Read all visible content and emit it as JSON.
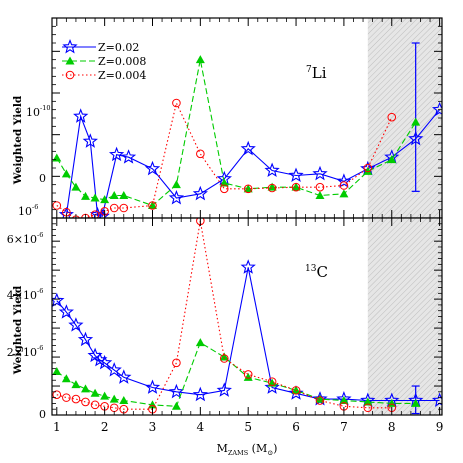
{
  "chart_data": [
    {
      "type": "line",
      "panel": "top",
      "annotation": "7Li",
      "annotation_sup": "7",
      "annotation_base": "Li",
      "ylabel": "Weighted Yield",
      "ylim": [
        -5,
        19
      ],
      "x_range": [
        0.9,
        9.05
      ],
      "y_ticks": [
        {
          "value": 0,
          "label": "0"
        },
        {
          "value": 10,
          "label": "10"
        },
        {
          "value": -5,
          "label": "10"
        }
      ],
      "y_tick_exponents": [
        "-10",
        "-6"
      ],
      "shaded_region_x": [
        7.5,
        9.05
      ],
      "legend_position": "top-left",
      "error_bar": {
        "x": 8.5,
        "y": 4.5,
        "low": -1.8,
        "high": 16,
        "color": "#0000ff"
      },
      "series": [
        {
          "name": "Z=0.02",
          "color": "#0000ff",
          "marker": "star",
          "dash": "solid",
          "x": [
            1.2,
            1.5,
            1.7,
            1.85,
            1.95,
            2.25,
            2.5,
            3.0,
            3.5,
            4.0,
            4.5,
            5.0,
            5.5,
            6.0,
            6.5,
            7.0,
            7.5,
            8.0,
            8.5,
            9.0
          ],
          "y": [
            -4.6,
            7.2,
            4.2,
            -4.6,
            -4.8,
            2.6,
            2.3,
            0.9,
            -2.6,
            -2.1,
            -0.3,
            3.3,
            0.7,
            0.1,
            0.3,
            -0.6,
            0.9,
            2.3,
            4.5,
            8.0
          ]
        },
        {
          "name": "Z=0.008",
          "color": "#00cc00",
          "marker": "triangle",
          "dash": "dashed",
          "x": [
            1.0,
            1.2,
            1.4,
            1.6,
            1.8,
            2.0,
            2.2,
            2.4,
            3.0,
            3.5,
            4.0,
            4.5,
            5.0,
            5.5,
            6.0,
            6.5,
            7.0,
            7.5,
            8.0,
            8.5
          ],
          "y": [
            2.2,
            0.3,
            -1.3,
            -2.4,
            -2.6,
            -2.8,
            -2.3,
            -2.3,
            -3.5,
            -1.0,
            14.0,
            -0.8,
            -1.5,
            -1.3,
            -1.3,
            -2.3,
            -2.1,
            0.6,
            2.0,
            6.5
          ]
        },
        {
          "name": "Z=0.004",
          "color": "#ff0000",
          "marker": "circle",
          "dash": "dotted",
          "x": [
            1.0,
            1.2,
            1.4,
            1.6,
            1.8,
            2.0,
            2.2,
            2.4,
            3.0,
            3.5,
            4.0,
            4.5,
            5.0,
            5.5,
            6.0,
            6.5,
            7.0,
            7.5,
            8.0
          ],
          "y": [
            -3.5,
            -4.3,
            -5.2,
            -5.0,
            -4.6,
            -4.2,
            -3.8,
            -3.8,
            -3.5,
            8.8,
            2.7,
            -1.5,
            -1.5,
            -1.4,
            -1.3,
            -1.3,
            -1.1,
            1.0,
            7.1
          ]
        }
      ]
    },
    {
      "type": "line",
      "panel": "bottom",
      "annotation": "13C",
      "annotation_sup": "13",
      "annotation_base": "C",
      "ylabel": "Weighted Yield",
      "xlabel": "M",
      "xlabel_sub": "ZAMS",
      "xlabel_unit": "(M",
      "xlabel_unit_end": ")",
      "ylim": [
        0,
        6.8
      ],
      "x_range": [
        0.9,
        9.05
      ],
      "x_ticks": [
        "1",
        "2",
        "3",
        "4",
        "5",
        "6",
        "7",
        "8",
        "9"
      ],
      "y_ticks": [
        {
          "value": 0,
          "label": "0"
        },
        {
          "value": 2,
          "label": "2×10"
        },
        {
          "value": 4,
          "label": "4×10"
        },
        {
          "value": 6,
          "label": "6×10"
        }
      ],
      "y_tick_exponent": "-6",
      "shaded_region_x": [
        7.5,
        9.05
      ],
      "error_bar": {
        "x": 8.5,
        "y": 0.45,
        "low": 0.05,
        "high": 1.0,
        "color": "#0000ff"
      },
      "series": [
        {
          "name": "Z=0.02",
          "color": "#0000ff",
          "marker": "star",
          "dash": "solid",
          "x": [
            1.0,
            1.2,
            1.4,
            1.6,
            1.8,
            1.9,
            2.0,
            2.2,
            2.4,
            3.0,
            3.5,
            4.0,
            4.5,
            5.0,
            5.5,
            6.0,
            6.5,
            7.0,
            7.5,
            8.0,
            8.5,
            9.0
          ],
          "y": [
            3.95,
            3.55,
            3.1,
            2.6,
            2.05,
            1.9,
            1.8,
            1.55,
            1.3,
            0.95,
            0.8,
            0.7,
            0.85,
            5.1,
            0.95,
            0.75,
            0.55,
            0.55,
            0.5,
            0.5,
            0.5,
            0.5
          ]
        },
        {
          "name": "Z=0.008",
          "color": "#00cc00",
          "marker": "triangle",
          "dash": "dashed",
          "x": [
            1.0,
            1.2,
            1.4,
            1.6,
            1.8,
            2.0,
            2.2,
            2.4,
            3.0,
            3.5,
            4.0,
            4.5,
            5.0,
            5.5,
            6.0,
            6.5,
            7.0,
            7.5,
            8.0,
            8.5
          ],
          "y": [
            1.5,
            1.25,
            1.05,
            0.9,
            0.75,
            0.65,
            0.55,
            0.5,
            0.35,
            0.3,
            2.5,
            2.0,
            1.3,
            1.1,
            0.85,
            0.55,
            0.5,
            0.45,
            0.4,
            0.4
          ]
        },
        {
          "name": "Z=0.004",
          "color": "#ff0000",
          "marker": "circle",
          "dash": "dotted",
          "x": [
            1.0,
            1.2,
            1.4,
            1.6,
            1.8,
            2.0,
            2.2,
            2.4,
            3.0,
            3.5,
            4.0,
            4.5,
            5.0,
            5.5,
            6.0,
            6.5,
            7.0,
            7.5,
            8.0
          ],
          "y": [
            0.7,
            0.6,
            0.55,
            0.45,
            0.35,
            0.3,
            0.25,
            0.2,
            0.2,
            1.8,
            6.7,
            1.95,
            1.4,
            1.15,
            0.85,
            0.5,
            0.3,
            0.25,
            0.25
          ]
        }
      ]
    }
  ]
}
